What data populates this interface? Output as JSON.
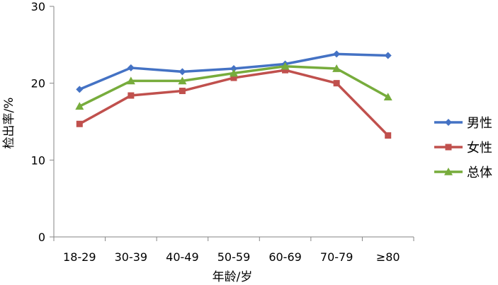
{
  "chart_data": {
    "type": "line",
    "title": "",
    "xlabel": "年龄/岁",
    "ylabel": "检出率/%",
    "categories": [
      "18-29",
      "30-39",
      "40-49",
      "50-59",
      "60-69",
      "70-79",
      "≥80"
    ],
    "ylim": [
      0,
      30
    ],
    "yticks": [
      "0",
      "10",
      "20",
      "30"
    ],
    "grid": false,
    "legend": "right",
    "series": [
      {
        "name": "男性",
        "color": "#4472C4",
        "marker": "diamond",
        "values": [
          19.2,
          22.0,
          21.5,
          21.9,
          22.5,
          23.8,
          23.6
        ]
      },
      {
        "name": "女性",
        "color": "#C0504D",
        "marker": "square",
        "values": [
          14.7,
          18.4,
          19.0,
          20.7,
          21.7,
          20.0,
          13.2
        ]
      },
      {
        "name": "总体",
        "color": "#77AC3C",
        "marker": "triangle",
        "values": [
          17.0,
          20.3,
          20.3,
          21.3,
          22.2,
          21.9,
          18.2
        ]
      }
    ]
  }
}
